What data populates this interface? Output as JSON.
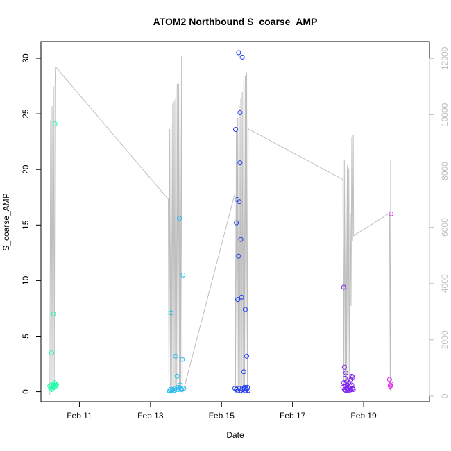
{
  "chart_data": {
    "type": "scatter",
    "title": "ATOM2 Northbound S_coarse_AMP",
    "xlabel": "Date",
    "ylabel": "S_coarse_AMP",
    "xlim": [
      "2024-02-09 22:00",
      "2024-02-20 20:30"
    ],
    "ylim": [
      -0.9,
      31.5
    ],
    "y_right_lim": [
      -200,
      12600
    ],
    "x_ticks": [
      {
        "date": "2024-02-11 00:00",
        "label": "Feb 11"
      },
      {
        "date": "2024-02-13 00:00",
        "label": "Feb 13"
      },
      {
        "date": "2024-02-15 00:00",
        "label": "Feb 15"
      },
      {
        "date": "2024-02-17 00:00",
        "label": "Feb 17"
      },
      {
        "date": "2024-02-19 00:00",
        "label": "Feb 19"
      }
    ],
    "y_ticks": [
      0,
      5,
      10,
      15,
      20,
      25,
      30
    ],
    "y_right_ticks": [
      0,
      2000,
      4000,
      6000,
      8000,
      10000,
      12000
    ],
    "grid": false,
    "colors": {
      "line": "#bebebe",
      "right_axis": "#bebebe"
    },
    "series": [
      {
        "color": "#1dffa8",
        "points": [
          [
            "2024-02-10 04:00",
            0.5
          ],
          [
            "2024-02-10 04:30",
            0.3
          ],
          [
            "2024-02-10 05:00",
            0.6
          ],
          [
            "2024-02-10 05:15",
            3.5
          ],
          [
            "2024-02-10 05:30",
            0.2
          ],
          [
            "2024-02-10 05:45",
            0.4
          ],
          [
            "2024-02-10 06:00",
            0.7
          ],
          [
            "2024-02-10 06:15",
            0.5
          ],
          [
            "2024-02-10 06:30",
            7.0
          ],
          [
            "2024-02-10 06:45",
            0.6
          ],
          [
            "2024-02-10 07:00",
            0.4
          ],
          [
            "2024-02-10 07:15",
            0.8
          ],
          [
            "2024-02-10 07:30",
            24.1
          ],
          [
            "2024-02-10 07:45",
            0.5
          ],
          [
            "2024-02-10 08:00",
            0.7
          ],
          [
            "2024-02-10 08:30",
            0.6
          ]
        ]
      },
      {
        "color": "#1fbbf0",
        "points": [
          [
            "2024-02-13 12:30",
            0.1
          ],
          [
            "2024-02-13 13:00",
            0.05
          ],
          [
            "2024-02-13 13:30",
            0.2
          ],
          [
            "2024-02-13 14:00",
            7.1
          ],
          [
            "2024-02-13 14:30",
            0.1
          ],
          [
            "2024-02-13 15:00",
            0.2
          ],
          [
            "2024-02-13 16:00",
            0.1
          ],
          [
            "2024-02-13 16:30",
            0.3
          ],
          [
            "2024-02-13 17:00",
            3.2
          ],
          [
            "2024-02-13 17:30",
            0.2
          ],
          [
            "2024-02-13 18:00",
            1.4
          ],
          [
            "2024-02-13 18:30",
            0.4
          ],
          [
            "2024-02-13 19:00",
            0.2
          ],
          [
            "2024-02-13 19:30",
            15.6
          ],
          [
            "2024-02-13 20:00",
            0.6
          ],
          [
            "2024-02-13 20:30",
            0.3
          ],
          [
            "2024-02-13 21:00",
            0.2
          ],
          [
            "2024-02-13 21:30",
            2.9
          ],
          [
            "2024-02-13 22:00",
            10.5
          ],
          [
            "2024-02-13 22:30",
            0.3
          ]
        ]
      },
      {
        "color": "#1f3cf2",
        "points": [
          [
            "2024-02-15 09:00",
            0.3
          ],
          [
            "2024-02-15 09:30",
            23.6
          ],
          [
            "2024-02-15 10:00",
            0.2
          ],
          [
            "2024-02-15 10:00",
            15.2
          ],
          [
            "2024-02-15 10:30",
            17.3
          ],
          [
            "2024-02-15 11:00",
            0.1
          ],
          [
            "2024-02-15 11:00",
            8.3
          ],
          [
            "2024-02-15 11:30",
            30.5
          ],
          [
            "2024-02-15 11:30",
            12.2
          ],
          [
            "2024-02-15 12:00",
            17.1
          ],
          [
            "2024-02-15 12:00",
            0.3
          ],
          [
            "2024-02-15 12:30",
            25.1
          ],
          [
            "2024-02-15 12:30",
            20.6
          ],
          [
            "2024-02-15 13:00",
            13.7
          ],
          [
            "2024-02-15 13:00",
            0.1
          ],
          [
            "2024-02-15 13:30",
            8.5
          ],
          [
            "2024-02-15 14:00",
            30.1
          ],
          [
            "2024-02-15 14:00",
            0.3
          ],
          [
            "2024-02-15 14:30",
            0.2
          ],
          [
            "2024-02-15 15:00",
            1.8
          ],
          [
            "2024-02-15 15:30",
            0.4
          ],
          [
            "2024-02-15 16:00",
            7.4
          ],
          [
            "2024-02-15 16:00",
            0.1
          ],
          [
            "2024-02-15 16:30",
            0.3
          ],
          [
            "2024-02-15 17:00",
            3.2
          ],
          [
            "2024-02-15 17:00",
            0.2
          ],
          [
            "2024-02-15 17:30",
            0.4
          ],
          [
            "2024-02-15 18:00",
            0.1
          ]
        ]
      },
      {
        "color": "#7d1ff2",
        "points": [
          [
            "2024-02-18 10:00",
            0.4
          ],
          [
            "2024-02-18 10:30",
            9.4
          ],
          [
            "2024-02-18 10:30",
            0.8
          ],
          [
            "2024-02-18 11:00",
            2.2
          ],
          [
            "2024-02-18 11:00",
            0.2
          ],
          [
            "2024-02-18 11:30",
            1.2
          ],
          [
            "2024-02-18 11:30",
            0.5
          ],
          [
            "2024-02-18 12:00",
            0.1
          ],
          [
            "2024-02-18 12:00",
            1.7
          ],
          [
            "2024-02-18 12:30",
            0.9
          ],
          [
            "2024-02-18 12:30",
            0.3
          ],
          [
            "2024-02-18 13:00",
            0.6
          ],
          [
            "2024-02-18 13:00",
            0.2
          ],
          [
            "2024-02-18 13:30",
            0.4
          ],
          [
            "2024-02-18 13:30",
            0.1
          ],
          [
            "2024-02-18 14:00",
            0.8
          ],
          [
            "2024-02-18 14:30",
            0.3
          ],
          [
            "2024-02-18 15:00",
            0.15
          ],
          [
            "2024-02-18 15:00",
            0.5
          ],
          [
            "2024-02-18 15:30",
            1.1
          ],
          [
            "2024-02-18 15:30",
            0.2
          ],
          [
            "2024-02-18 16:00",
            0.6
          ],
          [
            "2024-02-18 16:00",
            1.4
          ],
          [
            "2024-02-18 16:30",
            0.3
          ],
          [
            "2024-02-18 16:30",
            1.3
          ],
          [
            "2024-02-18 17:00",
            0.2
          ]
        ]
      },
      {
        "color": "#e81ff2",
        "points": [
          [
            "2024-02-19 17:30",
            1.1
          ],
          [
            "2024-02-19 18:00",
            0.6
          ],
          [
            "2024-02-19 18:00",
            0.5
          ],
          [
            "2024-02-19 18:30",
            16.0
          ],
          [
            "2024-02-19 18:30",
            0.7
          ]
        ]
      }
    ],
    "line_right_axis": [
      [
        "2024-02-10 04:00",
        50
      ],
      [
        "2024-02-10 04:30",
        9800
      ],
      [
        "2024-02-10 05:00",
        200
      ],
      [
        "2024-02-10 05:30",
        10300
      ],
      [
        "2024-02-10 06:00",
        300
      ],
      [
        "2024-02-10 06:30",
        11000
      ],
      [
        "2024-02-10 07:00",
        400
      ],
      [
        "2024-02-10 07:30",
        11100
      ],
      [
        "2024-02-10 07:45",
        11700
      ],
      [
        "2024-02-10 08:00",
        11700
      ],
      [
        "2024-02-13 12:00",
        7000
      ],
      [
        "2024-02-13 12:30",
        100
      ],
      [
        "2024-02-13 13:00",
        9500
      ],
      [
        "2024-02-13 13:30",
        100
      ],
      [
        "2024-02-13 14:00",
        9600
      ],
      [
        "2024-02-13 14:30",
        100
      ],
      [
        "2024-02-13 15:00",
        10400
      ],
      [
        "2024-02-13 15:30",
        100
      ],
      [
        "2024-02-13 16:00",
        10500
      ],
      [
        "2024-02-13 16:30",
        100
      ],
      [
        "2024-02-13 17:00",
        10600
      ],
      [
        "2024-02-13 17:30",
        200
      ],
      [
        "2024-02-13 18:00",
        11100
      ],
      [
        "2024-02-13 18:30",
        200
      ],
      [
        "2024-02-13 19:00",
        11100
      ],
      [
        "2024-02-13 19:30",
        200
      ],
      [
        "2024-02-13 20:00",
        11600
      ],
      [
        "2024-02-13 20:30",
        200
      ],
      [
        "2024-02-13 21:00",
        12100
      ],
      [
        "2024-02-13 21:30",
        200
      ],
      [
        "2024-02-13 22:00",
        150
      ],
      [
        "2024-02-15 09:00",
        7200
      ],
      [
        "2024-02-15 09:30",
        100
      ],
      [
        "2024-02-15 10:00",
        9400
      ],
      [
        "2024-02-15 10:30",
        100
      ],
      [
        "2024-02-15 11:00",
        9900
      ],
      [
        "2024-02-15 11:30",
        100
      ],
      [
        "2024-02-15 12:00",
        10300
      ],
      [
        "2024-02-15 12:30",
        100
      ],
      [
        "2024-02-15 13:00",
        10600
      ],
      [
        "2024-02-15 13:30",
        100
      ],
      [
        "2024-02-15 14:00",
        10800
      ],
      [
        "2024-02-15 14:30",
        100
      ],
      [
        "2024-02-15 15:00",
        11200
      ],
      [
        "2024-02-15 15:30",
        100
      ],
      [
        "2024-02-15 16:00",
        11400
      ],
      [
        "2024-02-15 16:30",
        100
      ],
      [
        "2024-02-15 17:00",
        11500
      ],
      [
        "2024-02-15 17:30",
        100
      ],
      [
        "2024-02-15 18:00",
        9500
      ],
      [
        "2024-02-18 10:00",
        7700
      ],
      [
        "2024-02-18 10:30",
        150
      ],
      [
        "2024-02-18 11:00",
        8400
      ],
      [
        "2024-02-18 11:30",
        150
      ],
      [
        "2024-02-18 12:00",
        8300
      ],
      [
        "2024-02-18 12:30",
        150
      ],
      [
        "2024-02-18 13:00",
        8200
      ],
      [
        "2024-02-18 13:30",
        150
      ],
      [
        "2024-02-18 14:00",
        8100
      ],
      [
        "2024-02-18 14:30",
        150
      ],
      [
        "2024-02-18 15:00",
        6500
      ],
      [
        "2024-02-18 15:30",
        3200
      ],
      [
        "2024-02-18 16:00",
        9200
      ],
      [
        "2024-02-18 16:30",
        5500
      ],
      [
        "2024-02-18 17:00",
        9300
      ],
      [
        "2024-02-18 17:15",
        5700
      ],
      [
        "2024-02-19 17:30",
        6500
      ],
      [
        "2024-02-19 18:00",
        200
      ],
      [
        "2024-02-19 18:15",
        8400
      ],
      [
        "2024-02-19 18:30",
        6400
      ]
    ]
  }
}
